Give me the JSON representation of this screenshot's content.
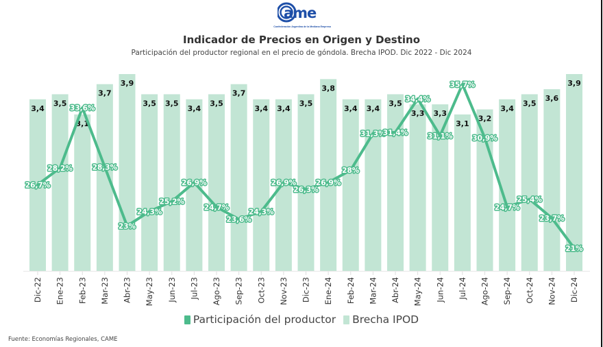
{
  "logo": {
    "brand": "came",
    "tagline": "Confederación Argentina de la Mediana Empresa",
    "color": "#1e4fa8"
  },
  "header": {
    "title": "Indicador de Precios en Origen y Destino",
    "subtitle": "Participación del productor regional en el precio de góndola. Brecha IPOD. Dic 2022 - Dic 2024"
  },
  "footer": {
    "source": "Fuente: Economías Regionales, CAME"
  },
  "chart_data": {
    "type": "bar",
    "title": "Indicador de Precios en Origen y Destino",
    "subtitle": "Participación del productor regional en el precio de góndola. Brecha IPOD. Dic 2022 - Dic 2024",
    "xlabel": "",
    "ylabel": "",
    "grid": false,
    "legend_position": "bottom-center",
    "categories": [
      "Dic-22",
      "Ene-23",
      "Feb-23",
      "Mar-23",
      "Abr-23",
      "May-23",
      "Jun-23",
      "Jul-23",
      "Ago-23",
      "Sep-23",
      "Oct-23",
      "Nov-23",
      "Dic-23",
      "Ene-24",
      "Feb-24",
      "Mar-24",
      "Abr-24",
      "May-24",
      "Jun-24",
      "Jul-24",
      "Ago-24",
      "Sep-24",
      "Oct-24",
      "Nov-24",
      "Dic-24"
    ],
    "series": [
      {
        "name": "Participación del productor",
        "type": "line",
        "color": "#4dbb8c",
        "unit": "%",
        "values": [
          26.7,
          28.2,
          33.6,
          28.3,
          23,
          24.3,
          25.2,
          26.9,
          24.7,
          23.6,
          24.3,
          26.9,
          26.3,
          26.9,
          28,
          31.3,
          31.4,
          34.4,
          31.1,
          35.7,
          30.9,
          24.7,
          25.4,
          23.7,
          21
        ],
        "labels": [
          "26,7%",
          "28,2%",
          "33,6%",
          "28,3%",
          "23%",
          "24,3%",
          "25,2%",
          "26,9%",
          "24,7%",
          "23,6%",
          "24,3%",
          "26,9%",
          "26,3%",
          "26,9%",
          "28%",
          "31,3%",
          "31,4%",
          "34,4%",
          "31,1%",
          "35,7%",
          "30,9%",
          "24,7%",
          "25,4%",
          "23,7%",
          "21%"
        ]
      },
      {
        "name": "Brecha IPOD",
        "type": "bar",
        "color": "#c2e5d4",
        "values": [
          3.4,
          3.5,
          3.1,
          3.7,
          3.9,
          3.5,
          3.5,
          3.4,
          3.5,
          3.7,
          3.4,
          3.4,
          3.5,
          3.8,
          3.4,
          3.4,
          3.5,
          3.3,
          3.3,
          3.1,
          3.2,
          3.4,
          3.5,
          3.6,
          3.9
        ],
        "labels": [
          "3,4",
          "3,5",
          "3,1",
          "3,7",
          "3,9",
          "3,5",
          "3,5",
          "3,4",
          "3,5",
          "3,7",
          "3,4",
          "3,4",
          "3,5",
          "3,8",
          "3,4",
          "3,4",
          "3,5",
          "3,3",
          "3,3",
          "3,1",
          "3,2",
          "3,4",
          "3,5",
          "3,6",
          "3,9"
        ]
      }
    ],
    "bar_axis_range": [
      0,
      3.9
    ],
    "line_axis_range": [
      21,
      35.7
    ]
  },
  "legend": {
    "items": [
      {
        "label": "Participación del productor",
        "color": "#4dbb8c"
      },
      {
        "label": "Brecha IPOD",
        "color": "#c2e5d4"
      }
    ]
  }
}
